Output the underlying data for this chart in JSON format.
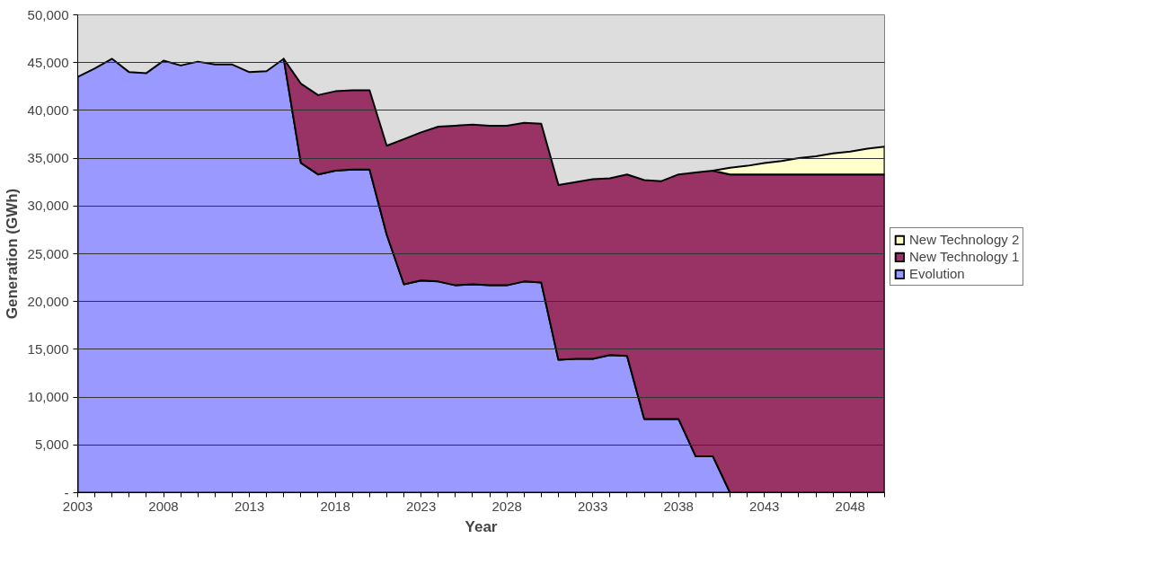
{
  "chart_data": {
    "type": "area",
    "stacked": true,
    "xlabel": "Year",
    "ylabel": "Generation (GWh)",
    "x": [
      2003,
      2004,
      2005,
      2006,
      2007,
      2008,
      2009,
      2010,
      2011,
      2012,
      2013,
      2014,
      2015,
      2016,
      2017,
      2018,
      2019,
      2020,
      2021,
      2022,
      2023,
      2024,
      2025,
      2026,
      2027,
      2028,
      2029,
      2030,
      2031,
      2032,
      2033,
      2034,
      2035,
      2036,
      2037,
      2038,
      2039,
      2040,
      2041,
      2042,
      2043,
      2044,
      2045,
      2046,
      2047,
      2048,
      2049,
      2050
    ],
    "series": [
      {
        "name": "Evolution",
        "color": "#9999ff",
        "values": [
          43500,
          44400,
          45400,
          44000,
          43900,
          45200,
          44700,
          45100,
          44800,
          44800,
          44000,
          44100,
          45400,
          34500,
          33300,
          33700,
          33800,
          33800,
          27000,
          21800,
          22200,
          22100,
          21700,
          21800,
          21700,
          21700,
          22100,
          22000,
          13900,
          14000,
          14000,
          14400,
          14300,
          7700,
          7700,
          7700,
          3800,
          3800,
          0,
          null,
          null,
          null,
          null,
          null,
          null,
          null,
          null,
          null
        ]
      },
      {
        "name": "New Technology 1",
        "color": "#993366",
        "values": [
          null,
          null,
          null,
          null,
          null,
          null,
          null,
          null,
          null,
          null,
          null,
          null,
          0,
          8300,
          8300,
          8300,
          8300,
          8300,
          9300,
          15200,
          15500,
          16200,
          16700,
          16700,
          16700,
          16700,
          16600,
          16600,
          18300,
          18500,
          18800,
          18500,
          19000,
          25000,
          24900,
          25600,
          29700,
          29900,
          33300,
          33300,
          33300,
          33300,
          33300,
          33300,
          33300,
          33300,
          33300,
          33300
        ]
      },
      {
        "name": "New Technology 2",
        "color": "#ffffcc",
        "values": [
          null,
          null,
          null,
          null,
          null,
          null,
          null,
          null,
          null,
          null,
          null,
          null,
          null,
          null,
          null,
          null,
          null,
          null,
          null,
          null,
          null,
          null,
          null,
          null,
          null,
          null,
          null,
          null,
          null,
          null,
          null,
          null,
          null,
          null,
          null,
          null,
          null,
          0,
          700,
          900,
          1200,
          1400,
          1700,
          1900,
          2200,
          2400,
          2700,
          2900
        ]
      }
    ],
    "xlim": [
      2003,
      2050
    ],
    "xticks": [
      2003,
      {
        "value": 2004,
        "label": null
      },
      {
        "value": 2005,
        "label": null
      },
      {
        "value": 2006,
        "label": null
      },
      {
        "value": 2007,
        "label": null
      },
      2008,
      {
        "value": 2009,
        "label": null
      },
      {
        "value": 2010,
        "label": null
      },
      {
        "value": 2011,
        "label": null
      },
      {
        "value": 2012,
        "label": null
      },
      2013,
      {
        "value": 2014,
        "label": null
      },
      {
        "value": 2015,
        "label": null
      },
      {
        "value": 2016,
        "label": null
      },
      {
        "value": 2017,
        "label": null
      },
      2018,
      {
        "value": 2019,
        "label": null
      },
      {
        "value": 2020,
        "label": null
      },
      {
        "value": 2021,
        "label": null
      },
      {
        "value": 2022,
        "label": null
      },
      2023,
      {
        "value": 2024,
        "label": null
      },
      {
        "value": 2025,
        "label": null
      },
      {
        "value": 2026,
        "label": null
      },
      {
        "value": 2027,
        "label": null
      },
      2028,
      {
        "value": 2029,
        "label": null
      },
      {
        "value": 2030,
        "label": null
      },
      {
        "value": 2031,
        "label": null
      },
      {
        "value": 2032,
        "label": null
      },
      2033,
      {
        "value": 2034,
        "label": null
      },
      {
        "value": 2035,
        "label": null
      },
      {
        "value": 2036,
        "label": null
      },
      {
        "value": 2037,
        "label": null
      },
      2038,
      {
        "value": 2039,
        "label": null
      },
      {
        "value": 2040,
        "label": null
      },
      {
        "value": 2041,
        "label": null
      },
      {
        "value": 2042,
        "label": null
      },
      2043,
      {
        "value": 2044,
        "label": null
      },
      {
        "value": 2045,
        "label": null
      },
      {
        "value": 2046,
        "label": null
      },
      {
        "value": 2047,
        "label": null
      },
      2048,
      {
        "value": 2049,
        "label": null
      },
      {
        "value": 2050,
        "label": null
      }
    ],
    "ylim": [
      0,
      50000
    ],
    "yticks": [
      {
        "value": 0,
        "label": "-"
      },
      {
        "value": 5000,
        "label": "5,000"
      },
      {
        "value": 10000,
        "label": "10,000"
      },
      {
        "value": 15000,
        "label": "15,000"
      },
      {
        "value": 20000,
        "label": "20,000"
      },
      {
        "value": 25000,
        "label": "25,000"
      },
      {
        "value": 30000,
        "label": "30,000"
      },
      {
        "value": 35000,
        "label": "35,000"
      },
      {
        "value": 40000,
        "label": "40,000"
      },
      {
        "value": 45000,
        "label": "45,000"
      },
      {
        "value": 50000,
        "label": "50,000"
      }
    ],
    "grid": "y",
    "legend": "right"
  }
}
